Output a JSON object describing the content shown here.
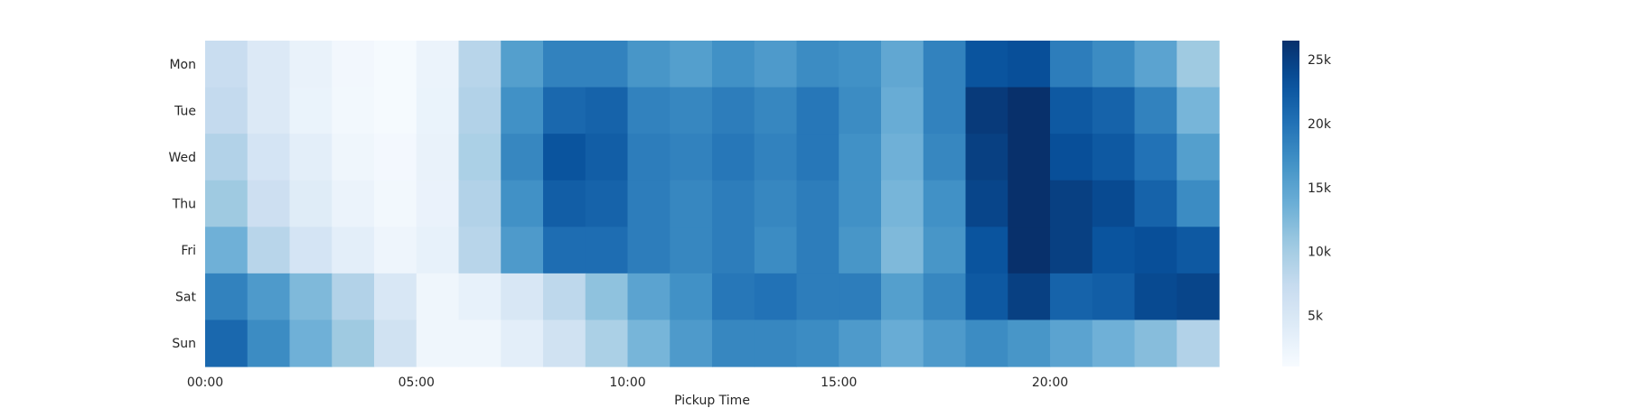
{
  "chart_data": {
    "type": "heatmap",
    "title": "",
    "xlabel": "Pickup Time",
    "ylabel": "",
    "rows": [
      "Mon",
      "Tue",
      "Wed",
      "Thu",
      "Fri",
      "Sat",
      "Sun"
    ],
    "hours": [
      "0",
      "1",
      "2",
      "3",
      "4",
      "5",
      "6",
      "7",
      "8",
      "9",
      "10",
      "11",
      "12",
      "13",
      "14",
      "15",
      "16",
      "17",
      "18",
      "19",
      "20",
      "21",
      "22",
      "23"
    ],
    "x_ticks": [
      {
        "hour": 0,
        "label": "00:00"
      },
      {
        "hour": 5,
        "label": "05:00"
      },
      {
        "hour": 10,
        "label": "10:00"
      },
      {
        "hour": 15,
        "label": "15:00"
      },
      {
        "hour": 20,
        "label": "20:00"
      }
    ],
    "values": [
      [
        7000,
        4500,
        2800,
        1700,
        1200,
        2500,
        8500,
        15500,
        18500,
        18500,
        16500,
        15500,
        17000,
        16000,
        17500,
        17000,
        14500,
        18500,
        23000,
        23500,
        19000,
        17500,
        15000,
        10500
      ],
      [
        7500,
        4500,
        2600,
        1600,
        1200,
        2600,
        9000,
        17000,
        21000,
        21500,
        18500,
        18000,
        19000,
        18000,
        19500,
        17500,
        14000,
        18500,
        25500,
        26500,
        22500,
        21500,
        18500,
        13000
      ],
      [
        9000,
        5500,
        3500,
        2000,
        1500,
        2800,
        9500,
        18000,
        23000,
        22000,
        19000,
        18500,
        19500,
        18500,
        19500,
        17000,
        13500,
        18000,
        25000,
        26500,
        23500,
        22500,
        20000,
        15500
      ],
      [
        10500,
        6500,
        4000,
        2500,
        1600,
        2700,
        9000,
        17000,
        22000,
        21500,
        19000,
        18000,
        19000,
        18000,
        19000,
        17000,
        13000,
        17000,
        24500,
        26500,
        25000,
        24000,
        21500,
        17500
      ],
      [
        13500,
        8500,
        5500,
        3500,
        2200,
        3000,
        8500,
        16000,
        20500,
        20500,
        19000,
        18000,
        19000,
        17500,
        19000,
        16500,
        12500,
        16500,
        23000,
        26500,
        25000,
        23000,
        23500,
        22500
      ],
      [
        18500,
        16000,
        12500,
        9000,
        5000,
        2000,
        3000,
        5000,
        8000,
        11500,
        15000,
        17000,
        19500,
        20000,
        19000,
        19000,
        15500,
        18000,
        22500,
        25000,
        21500,
        22000,
        24000,
        24500
      ],
      [
        21000,
        17500,
        13500,
        10500,
        6000,
        2000,
        2000,
        3500,
        6000,
        9500,
        13000,
        16000,
        18000,
        18000,
        17500,
        16000,
        14000,
        16000,
        17500,
        16500,
        15000,
        13500,
        12000,
        9000
      ]
    ],
    "colorbar": {
      "min": 1000,
      "max": 26500,
      "ticks": [
        5000,
        10000,
        15000,
        20000,
        25000
      ],
      "tick_labels": [
        "5k",
        "10k",
        "15k",
        "20k",
        "25k"
      ],
      "colormap": "Blues"
    },
    "grid": false
  }
}
